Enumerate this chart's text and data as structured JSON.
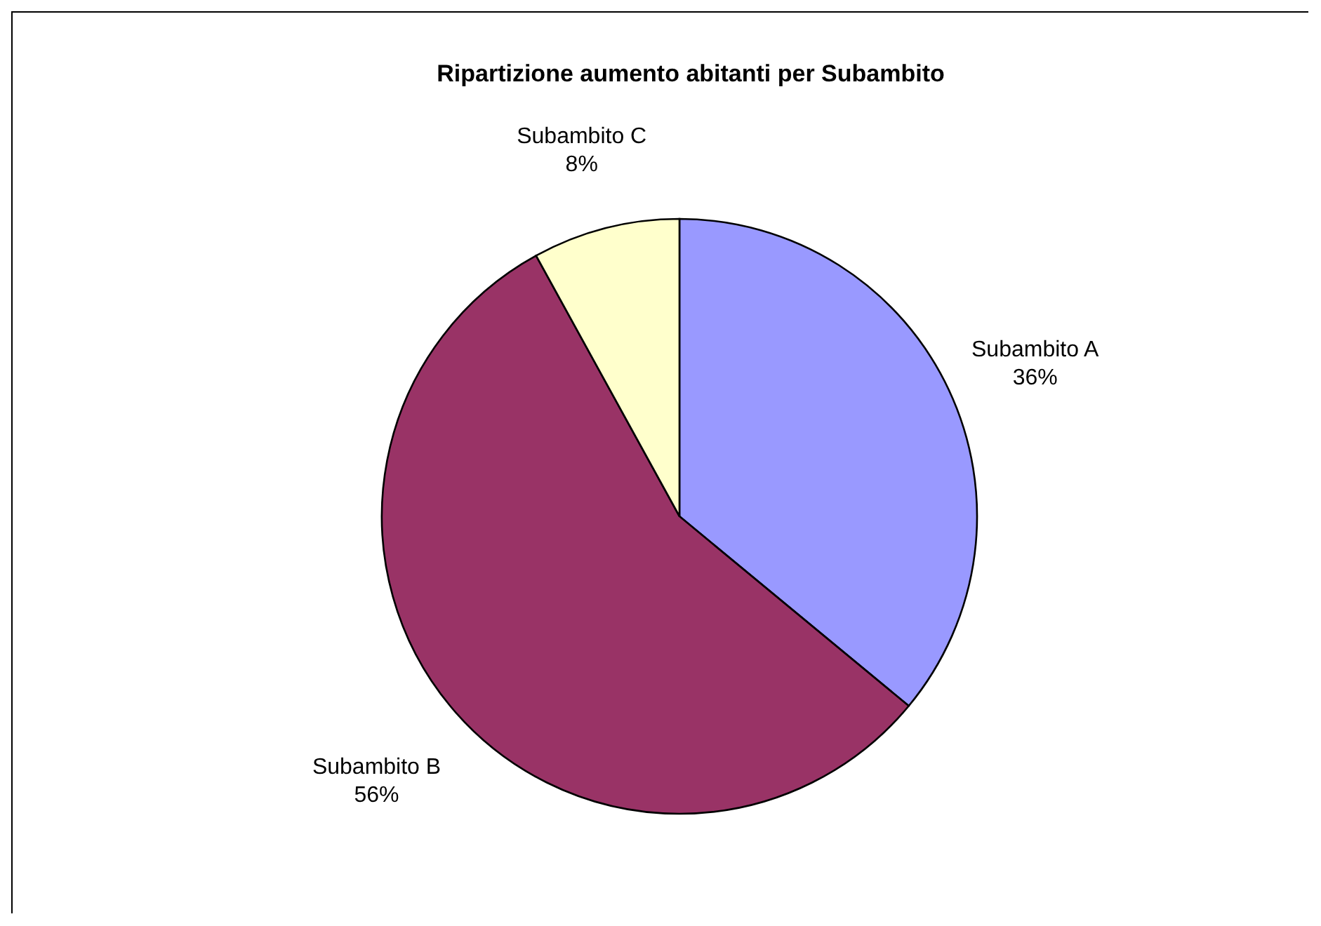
{
  "chart_data": {
    "type": "pie",
    "title": "Ripartizione aumento abitanti per Subambito",
    "categories": [
      "Subambito A",
      "Subambito B",
      "Subambito C"
    ],
    "values": [
      36,
      56,
      8
    ],
    "value_labels": [
      "36%",
      "56%",
      "8%"
    ],
    "colors": [
      "#9999ff",
      "#993366",
      "#ffffcc"
    ]
  }
}
